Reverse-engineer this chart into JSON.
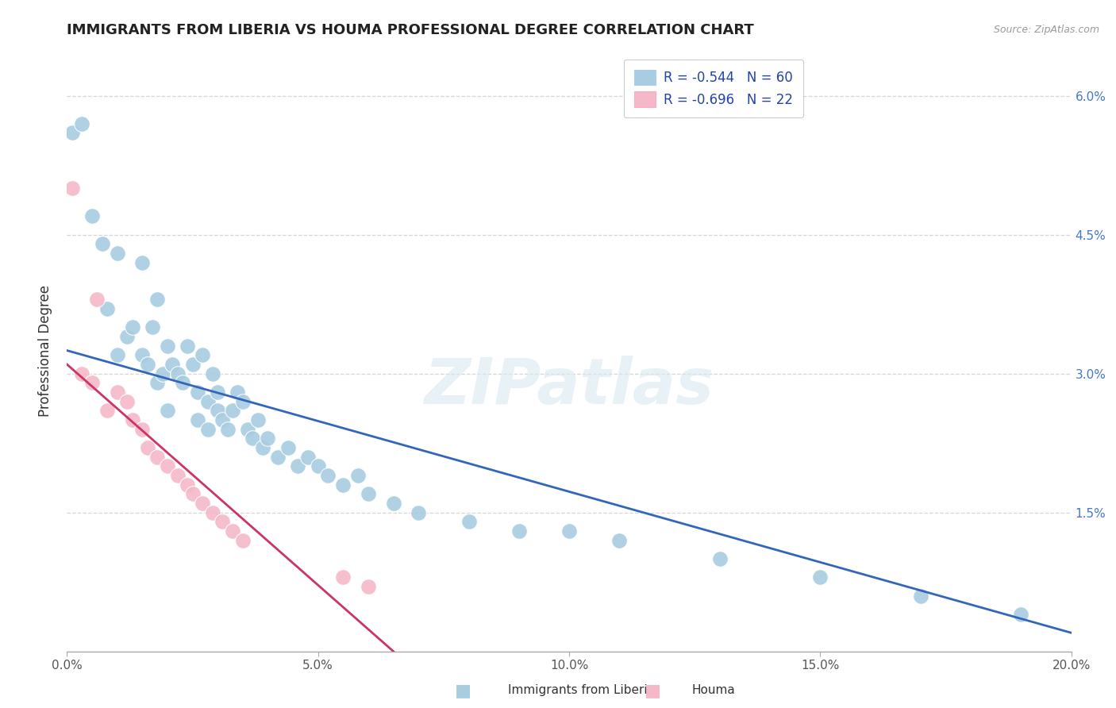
{
  "title": "IMMIGRANTS FROM LIBERIA VS HOUMA PROFESSIONAL DEGREE CORRELATION CHART",
  "source_text": "Source: ZipAtlas.com",
  "ylabel": "Professional Degree",
  "legend_r_n": [
    [
      "R = -0.544",
      "N = 60"
    ],
    [
      "R = -0.696",
      "N = 22"
    ]
  ],
  "legend_bottom": [
    "Immigrants from Liberia",
    "Houma"
  ],
  "xmin": 0.0,
  "xmax": 0.2,
  "ymin": 0.0,
  "ymax": 0.065,
  "x_ticks": [
    0.0,
    0.05,
    0.1,
    0.15,
    0.2
  ],
  "x_tick_labels": [
    "0.0%",
    "5.0%",
    "10.0%",
    "15.0%",
    "20.0%"
  ],
  "y_ticks": [
    0.0,
    0.015,
    0.03,
    0.045,
    0.06
  ],
  "y_tick_labels": [
    "",
    "1.5%",
    "3.0%",
    "4.5%",
    "6.0%"
  ],
  "blue_color": "#a8cce0",
  "pink_color": "#f4b8c8",
  "blue_line_color": "#3366bb",
  "pink_line_color": "#cc3366",
  "grid_color": "#cccccc",
  "watermark": "ZIPatlas",
  "blue_scatter_x": [
    0.001,
    0.003,
    0.005,
    0.007,
    0.008,
    0.01,
    0.01,
    0.012,
    0.013,
    0.015,
    0.015,
    0.016,
    0.017,
    0.018,
    0.018,
    0.019,
    0.02,
    0.02,
    0.021,
    0.022,
    0.023,
    0.024,
    0.025,
    0.026,
    0.026,
    0.027,
    0.028,
    0.028,
    0.029,
    0.03,
    0.03,
    0.031,
    0.032,
    0.033,
    0.034,
    0.035,
    0.036,
    0.037,
    0.038,
    0.039,
    0.04,
    0.042,
    0.044,
    0.046,
    0.048,
    0.05,
    0.052,
    0.055,
    0.058,
    0.06,
    0.065,
    0.07,
    0.08,
    0.09,
    0.1,
    0.11,
    0.13,
    0.15,
    0.17,
    0.19
  ],
  "blue_scatter_y": [
    0.056,
    0.057,
    0.047,
    0.044,
    0.037,
    0.043,
    0.032,
    0.034,
    0.035,
    0.042,
    0.032,
    0.031,
    0.035,
    0.038,
    0.029,
    0.03,
    0.033,
    0.026,
    0.031,
    0.03,
    0.029,
    0.033,
    0.031,
    0.028,
    0.025,
    0.032,
    0.027,
    0.024,
    0.03,
    0.028,
    0.026,
    0.025,
    0.024,
    0.026,
    0.028,
    0.027,
    0.024,
    0.023,
    0.025,
    0.022,
    0.023,
    0.021,
    0.022,
    0.02,
    0.021,
    0.02,
    0.019,
    0.018,
    0.019,
    0.017,
    0.016,
    0.015,
    0.014,
    0.013,
    0.013,
    0.012,
    0.01,
    0.008,
    0.006,
    0.004
  ],
  "pink_scatter_x": [
    0.001,
    0.003,
    0.005,
    0.006,
    0.008,
    0.01,
    0.012,
    0.013,
    0.015,
    0.016,
    0.018,
    0.02,
    0.022,
    0.024,
    0.025,
    0.027,
    0.029,
    0.031,
    0.033,
    0.035,
    0.055,
    0.06
  ],
  "pink_scatter_y": [
    0.05,
    0.03,
    0.029,
    0.038,
    0.026,
    0.028,
    0.027,
    0.025,
    0.024,
    0.022,
    0.021,
    0.02,
    0.019,
    0.018,
    0.017,
    0.016,
    0.015,
    0.014,
    0.013,
    0.012,
    0.008,
    0.007
  ],
  "blue_line_x": [
    0.0,
    0.2
  ],
  "blue_line_y": [
    0.0325,
    0.002
  ],
  "pink_line_x": [
    0.0,
    0.065
  ],
  "pink_line_y": [
    0.031,
    0.0
  ]
}
